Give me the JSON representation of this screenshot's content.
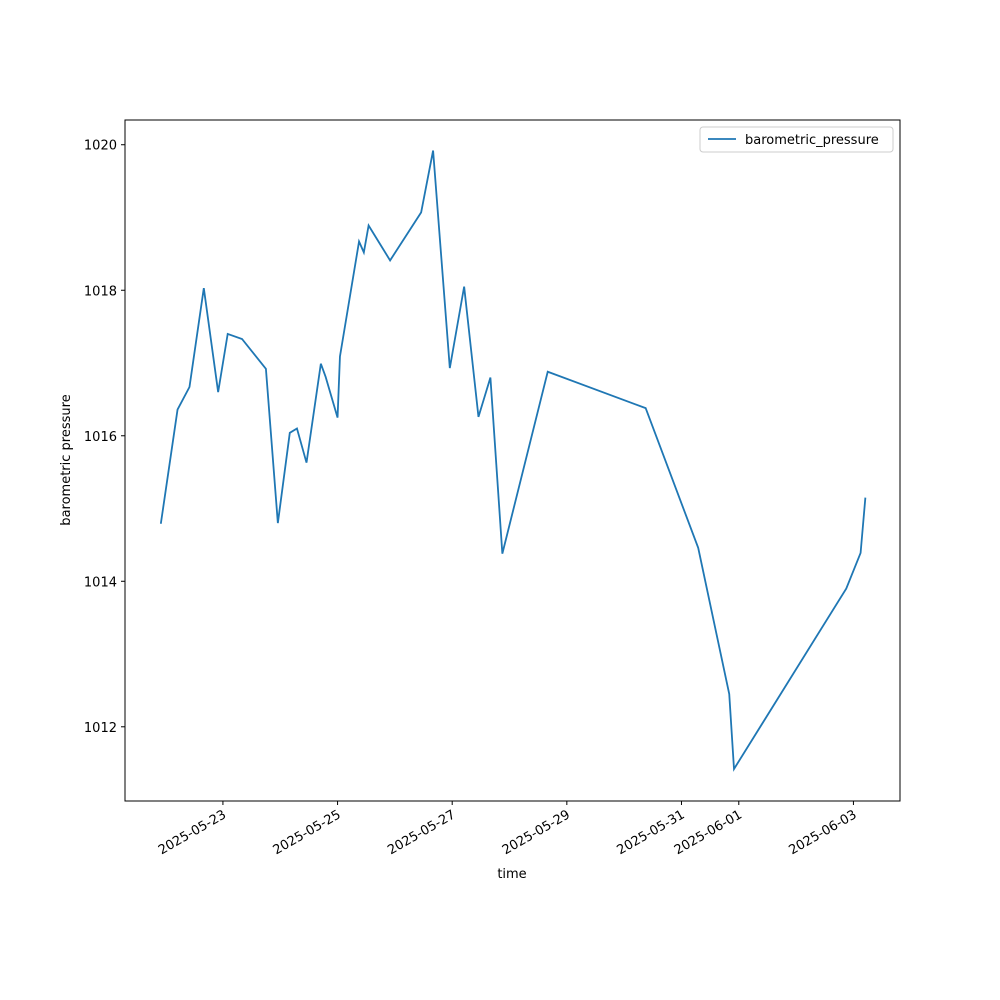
{
  "chart_data": {
    "type": "line",
    "xlabel": "time",
    "ylabel": "barometric pressure",
    "x": [
      "2025-05-21 22:00",
      "2025-05-22 05:00",
      "2025-05-22 10:00",
      "2025-05-22 16:00",
      "2025-05-22 22:00",
      "2025-05-23 02:00",
      "2025-05-23 08:00",
      "2025-05-23 18:00",
      "2025-05-23 23:00",
      "2025-05-24 04:00",
      "2025-05-24 07:00",
      "2025-05-24 11:00",
      "2025-05-24 17:00",
      "2025-05-24 19:00",
      "2025-05-25 00:00",
      "2025-05-25 01:00",
      "2025-05-25 09:00",
      "2025-05-25 11:00",
      "2025-05-25 13:00",
      "2025-05-25 22:00",
      "2025-05-26 11:00",
      "2025-05-26 16:00",
      "2025-05-26 23:00",
      "2025-05-27 05:00",
      "2025-05-27 11:00",
      "2025-05-27 16:00",
      "2025-05-27 21:00",
      "2025-05-28 16:00",
      "2025-05-30 09:00",
      "2025-05-31 07:00",
      "2025-05-31 20:00",
      "2025-05-31 22:00",
      "2025-06-02 21:00",
      "2025-06-03 03:00",
      "2025-06-03 05:00"
    ],
    "series": [
      {
        "name": "barometric_pressure",
        "color": "#1f77b4",
        "values": [
          1014.79,
          1016.36,
          1016.67,
          1018.03,
          1016.6,
          1017.4,
          1017.33,
          1016.92,
          1014.8,
          1016.04,
          1016.1,
          1015.63,
          1016.99,
          1016.81,
          1016.25,
          1017.09,
          1018.67,
          1018.52,
          1018.89,
          1018.41,
          1019.07,
          1019.92,
          1016.93,
          1018.05,
          1016.26,
          1016.8,
          1014.38,
          1016.88,
          1016.38,
          1014.46,
          1012.45,
          1011.42,
          1013.9,
          1014.39,
          1015.15
        ]
      }
    ],
    "xlim": [
      "2025-05-21 07:00",
      "2025-06-03 19:30"
    ],
    "xticks": [
      "2025-05-23",
      "2025-05-25",
      "2025-05-27",
      "2025-05-29",
      "2025-05-31",
      "2025-06-01",
      "2025-06-03"
    ],
    "ylim": [
      1010.98,
      1020.34
    ],
    "yticks": [
      1012,
      1014,
      1016,
      1018,
      1020
    ],
    "legend": "upper right"
  }
}
